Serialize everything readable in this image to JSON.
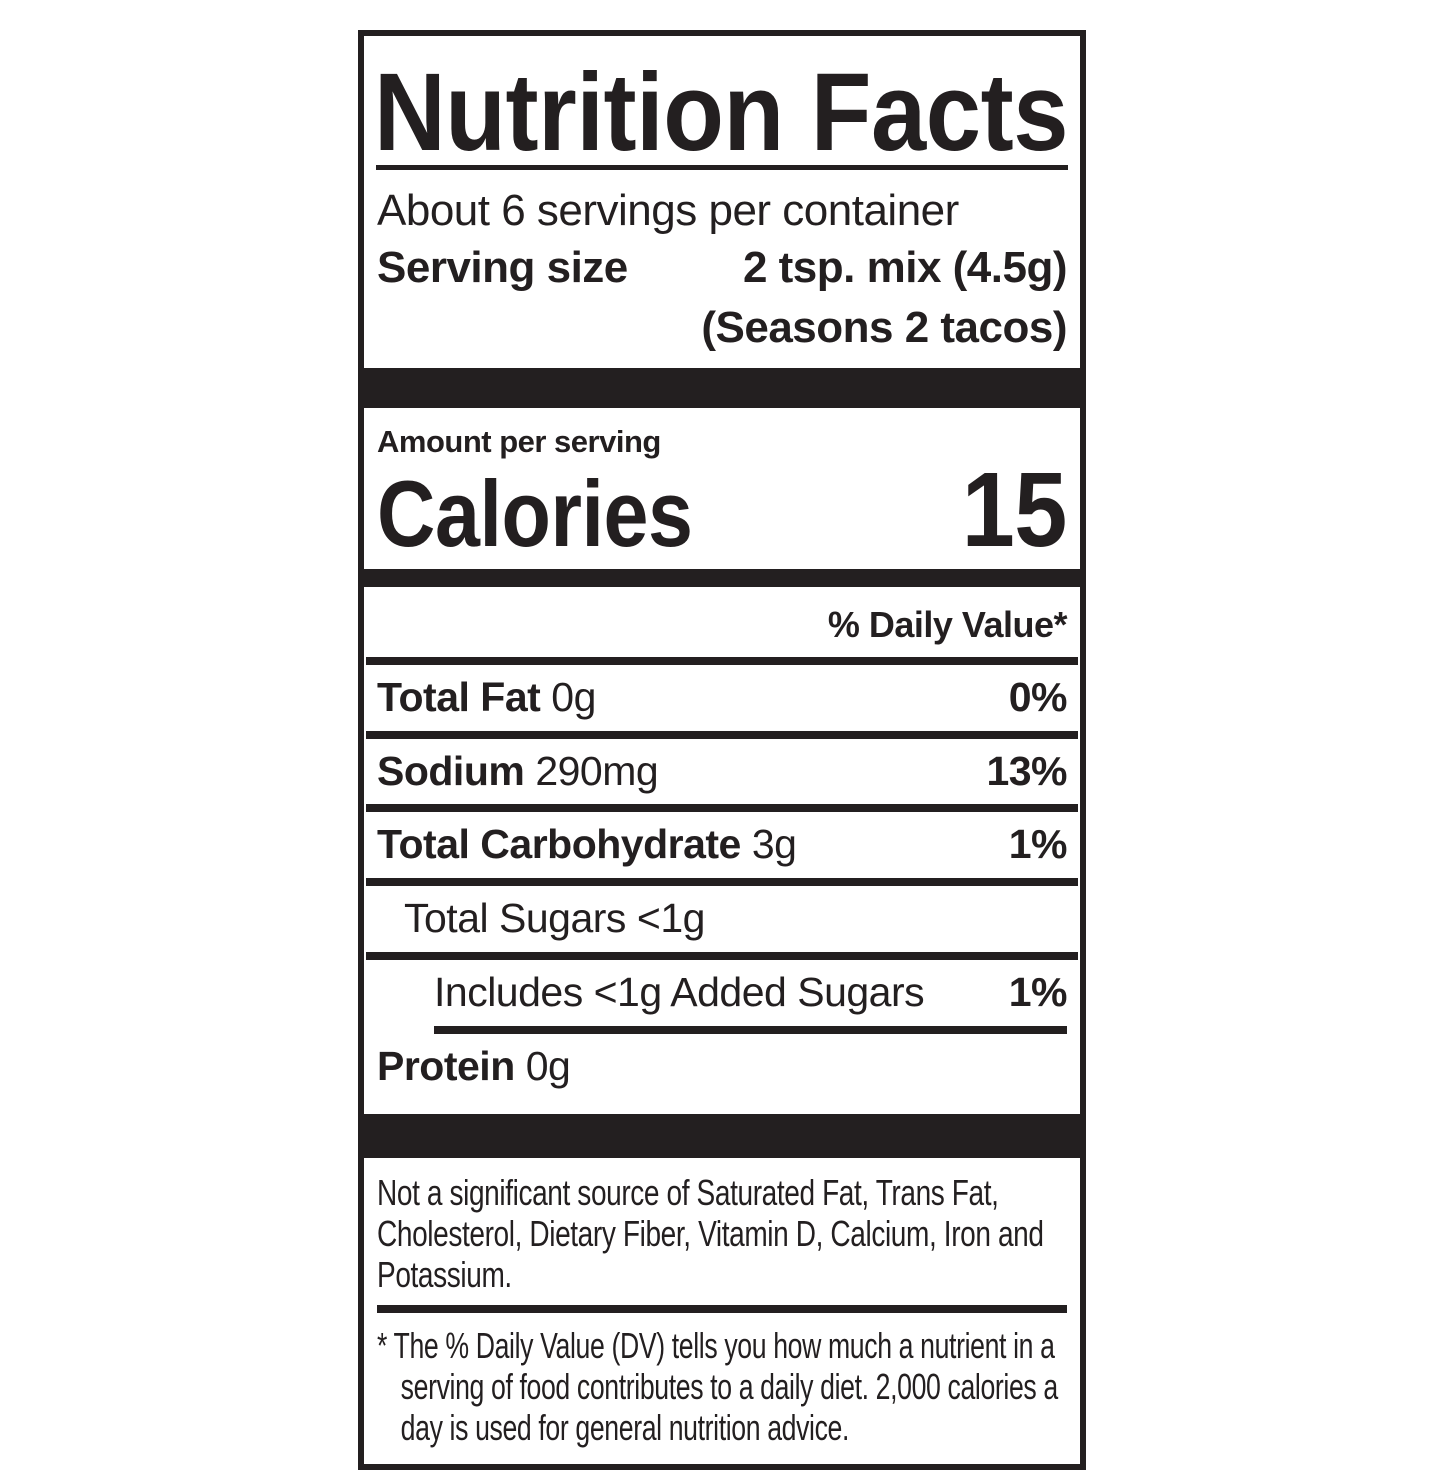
{
  "label": {
    "title": "Nutrition Facts",
    "servings_per_container": "About 6 servings per container",
    "serving_size": {
      "label": "Serving size",
      "value": "2 tsp. mix (4.5g)",
      "note": "(Seasons 2 tacos)"
    },
    "calories": {
      "heading": "Amount per serving",
      "label": "Calories",
      "value": "15"
    },
    "daily_value_header": "% Daily Value*",
    "nutrients": [
      {
        "name": "Total Fat",
        "amount": "0g",
        "daily_value": "0%"
      },
      {
        "name": "Sodium",
        "amount": "290mg",
        "daily_value": "13%"
      },
      {
        "name": "Total Carbohydrate",
        "amount": "3g",
        "daily_value": "1%"
      },
      {
        "name": "Total Sugars",
        "amount": "<1g",
        "daily_value": ""
      },
      {
        "name": "Includes <1g Added Sugars",
        "amount": "",
        "daily_value": "1%"
      },
      {
        "name": "Protein",
        "amount": "0g",
        "daily_value": ""
      }
    ],
    "not_significant_note": "Not a significant source of Saturated Fat, Trans Fat, Cholesterol, Dietary Fiber, Vitamin D, Calcium, Iron and Potassium.",
    "footnote": {
      "marker": "*",
      "text": "The % Daily Value (DV) tells you how much a nutrient in a serving of food contributes to a daily diet. 2,000 calories a day is used for general nutrition advice."
    },
    "colors": {
      "ink": "#231f20",
      "background": "#ffffff"
    }
  }
}
